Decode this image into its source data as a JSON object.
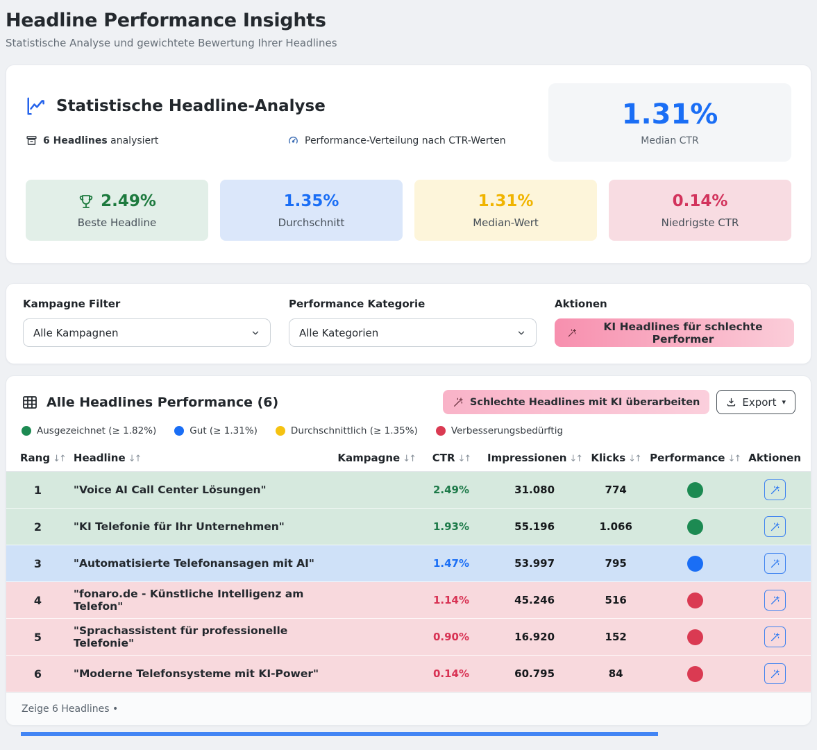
{
  "page": {
    "title": "Headline Performance Insights",
    "subtitle": "Statistische Analyse und gewichtete Bewertung Ihrer Headlines"
  },
  "icons": {
    "sort": "↓↑",
    "caret_down": "▾"
  },
  "analysis": {
    "title": "Statistische Headline-Analyse",
    "meta_count_bold": "6 Headlines",
    "meta_count_rest": " analysiert",
    "meta_distribution": "Performance-Verteilung nach CTR-Werten",
    "median_box": {
      "value": "1.31%",
      "label": "Median CTR",
      "value_color": "#1a6ef5"
    },
    "stats": [
      {
        "value": "2.49%",
        "label": "Beste Headline",
        "icon": "trophy-icon",
        "color": "#1d7a3e",
        "bg": "#e2efe8"
      },
      {
        "value": "1.35%",
        "label": "Durchschnitt",
        "color": "#1a6ef5",
        "bg": "#dbe7fa"
      },
      {
        "value": "1.31%",
        "label": "Median-Wert",
        "color": "#f0b400",
        "bg": "#fdf5da"
      },
      {
        "value": "0.14%",
        "label": "Niedrigste CTR",
        "color": "#d2335c",
        "bg": "#f8dce2"
      }
    ]
  },
  "filters": {
    "campaign_label": "Kampagne Filter",
    "campaign_value": "Alle Kampagnen",
    "category_label": "Performance Kategorie",
    "category_value": "Alle Kategorien",
    "actions_label": "Aktionen",
    "ai_button_label": "KI Headlines für schlechte Performer"
  },
  "table": {
    "title": "Alle Headlines Performance (6)",
    "rework_button_label": "Schlechte Headlines mit KI überarbeiten",
    "export_button_label": "Export",
    "legend": [
      {
        "label": "Ausgezeichnet (≥ 1.82%)",
        "color": "#1c8a52"
      },
      {
        "label": "Gut (≥ 1.31%)",
        "color": "#1a6ef5"
      },
      {
        "label": "Durchschnittlich (≥ 1.35%)",
        "color": "#f5c211"
      },
      {
        "label": "Verbesserungsbedürftig",
        "color": "#da3a52"
      }
    ],
    "columns": {
      "rank": "Rang",
      "headline": "Headline",
      "campaign": "Kampagne",
      "ctr": "CTR",
      "impressions": "Impressionen",
      "clicks": "Klicks",
      "performance": "Performance",
      "actions": "Aktionen"
    },
    "rows": [
      {
        "rank": "1",
        "headline": "\"Voice AI Call Center Lösungen\"",
        "campaign": "",
        "ctr": "2.49%",
        "impressions": "31.080",
        "clicks": "774",
        "tier": "excellent"
      },
      {
        "rank": "2",
        "headline": "\"KI Telefonie für Ihr Unternehmen\"",
        "campaign": "",
        "ctr": "1.93%",
        "impressions": "55.196",
        "clicks": "1.066",
        "tier": "excellent"
      },
      {
        "rank": "3",
        "headline": "\"Automatisierte Telefonansagen mit AI\"",
        "campaign": "",
        "ctr": "1.47%",
        "impressions": "53.997",
        "clicks": "795",
        "tier": "good"
      },
      {
        "rank": "4",
        "headline": "\"fonaro.de - Künstliche Intelligenz am Telefon\"",
        "campaign": "",
        "ctr": "1.14%",
        "impressions": "45.246",
        "clicks": "516",
        "tier": "poor"
      },
      {
        "rank": "5",
        "headline": "\"Sprachassistent für professionelle Telefonie\"",
        "campaign": "",
        "ctr": "0.90%",
        "impressions": "16.920",
        "clicks": "152",
        "tier": "poor"
      },
      {
        "rank": "6",
        "headline": "\"Moderne Telefonsysteme mit KI-Power\"",
        "campaign": "",
        "ctr": "0.14%",
        "impressions": "60.795",
        "clicks": "84",
        "tier": "poor"
      }
    ],
    "footer": "Zeige 6 Headlines •"
  }
}
